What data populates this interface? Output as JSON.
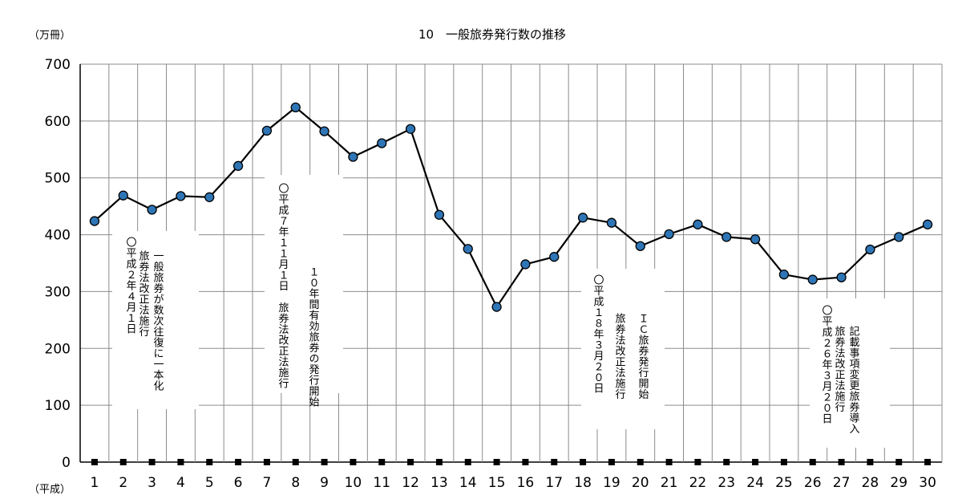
{
  "chart_data": {
    "type": "line",
    "title": "10　一般旅券発行数の推移",
    "ylabel": "（万冊）",
    "xlabel": "（平成）",
    "ylim": [
      0,
      700
    ],
    "yticks": [
      0,
      100,
      200,
      300,
      400,
      500,
      600,
      700
    ],
    "grid": true,
    "x": [
      "1",
      "2",
      "3",
      "4",
      "5",
      "6",
      "7",
      "8",
      "9",
      "10",
      "11",
      "12",
      "13",
      "14",
      "15",
      "16",
      "17",
      "18",
      "19",
      "20",
      "21",
      "22",
      "23",
      "24",
      "25",
      "26",
      "27",
      "28",
      "29",
      "30"
    ],
    "series": [
      {
        "name": "",
        "color": "#2e75b6",
        "values": [
          424,
          469,
          444,
          468,
          466,
          521,
          583,
          624,
          582,
          537,
          561,
          586,
          435,
          375,
          273,
          348,
          361,
          430,
          421,
          380,
          401,
          418,
          396,
          392,
          330,
          321,
          325,
          374,
          396,
          418
        ]
      }
    ],
    "baseline_markers": true,
    "annotations": [
      {
        "id": "h2",
        "x_index": 1,
        "lines": [
          "〇平成２年４月１日",
          "旅券法改正法施行",
          "一般旅券が数次往復に一本化"
        ]
      },
      {
        "id": "h7",
        "x_index": 6,
        "lines": [
          "〇平成７年１１月１日　旅券法改正法施行",
          "１０年間有効旅券の発行開始"
        ]
      },
      {
        "id": "h18",
        "x_index": 17,
        "lines": [
          "〇平成１８年３月２０日",
          "旅券法改正法施行",
          "ＩＣ旅券発行開始"
        ]
      },
      {
        "id": "h26",
        "x_index": 25,
        "lines": [
          "〇平成２６年３月２０日",
          "旅券法改正法施行",
          "記載事項変更旅券導入"
        ]
      }
    ]
  }
}
